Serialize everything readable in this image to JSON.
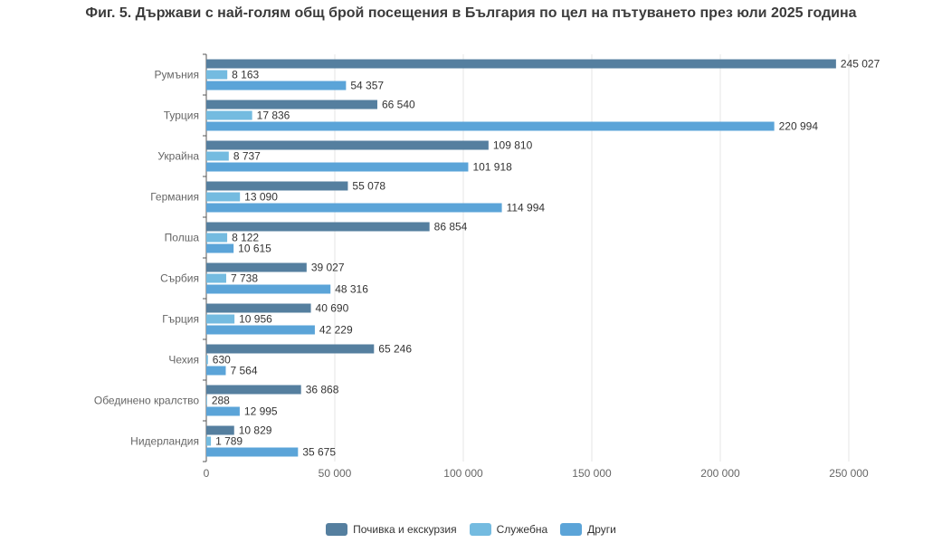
{
  "chart_data": {
    "type": "bar",
    "orientation": "horizontal",
    "title": "Фиг. 5. Държави с най-голям общ брой посещения в България по цел на пътуването през юли 2025 година",
    "categories": [
      "Румъния",
      "Турция",
      "Украйна",
      "Германия",
      "Полша",
      "Сърбия",
      "Гърция",
      "Чехия",
      "Обединено кралство",
      "Нидерландия"
    ],
    "series": [
      {
        "name": "Почивка и екскурзия",
        "color": "#557f9f",
        "values": [
          245027,
          66540,
          109810,
          55078,
          86854,
          39027,
          40690,
          65246,
          36868,
          10829
        ],
        "labels": [
          "245 027",
          "66 540",
          "109 810",
          "55 078",
          "86 854",
          "39 027",
          "40 690",
          "65 246",
          "36 868",
          "10 829"
        ]
      },
      {
        "name": "Служебна",
        "color": "#74bbe0",
        "values": [
          8163,
          17836,
          8737,
          13090,
          8122,
          7738,
          10956,
          630,
          288,
          1789
        ],
        "labels": [
          "8 163",
          "17 836",
          "8 737",
          "13 090",
          "8 122",
          "7 738",
          "10 956",
          "630",
          "288",
          "1 789"
        ]
      },
      {
        "name": "Други",
        "color": "#5ba4d8",
        "values": [
          54357,
          220994,
          101918,
          114994,
          10615,
          48316,
          42229,
          7564,
          12995,
          35675
        ],
        "labels": [
          "54 357",
          "220 994",
          "101 918",
          "114 994",
          "10 615",
          "48 316",
          "42 229",
          "7 564",
          "12 995",
          "35 675"
        ]
      }
    ],
    "xlim": [
      0,
      250000
    ],
    "xticks": [
      0,
      50000,
      100000,
      150000,
      200000,
      250000
    ],
    "xtick_labels": [
      "0",
      "50 000",
      "100 000",
      "150 000",
      "200 000",
      "250 000"
    ],
    "grid": true,
    "legend_position": "bottom"
  }
}
